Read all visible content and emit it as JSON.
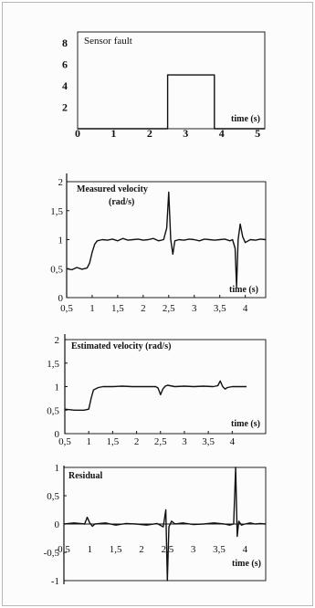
{
  "chart_data": [
    {
      "type": "line",
      "annotation": "Sensor fault",
      "xlabel": "time (s)",
      "ylabel": "",
      "x_ticks": [
        "0",
        "1",
        "2",
        "3",
        "4",
        "5"
      ],
      "y_ticks": [
        "2",
        "4",
        "6",
        "8"
      ],
      "xlim": [
        0,
        5.2
      ],
      "ylim": [
        0,
        9
      ],
      "series": [
        {
          "x": [
            0,
            2.5,
            2.5,
            3.8,
            3.8,
            5.2
          ],
          "y": [
            0,
            0,
            5,
            5,
            0,
            0
          ]
        }
      ]
    },
    {
      "type": "line",
      "annotation_lines": [
        "Measured   velocity",
        "(rad/s)"
      ],
      "xlabel": "time (s)",
      "x_ticks": [
        "0,5",
        "1",
        "1,5",
        "2",
        "2,5",
        "3",
        "3,5",
        "4"
      ],
      "y_ticks": [
        "0",
        "0,5",
        "1",
        "1,5",
        "2"
      ],
      "xlim": [
        0.5,
        4.4
      ],
      "ylim": [
        0,
        2
      ],
      "series": [
        {
          "x": [
            0.5,
            0.6,
            0.7,
            0.8,
            0.9,
            0.95,
            1.0,
            1.05,
            1.1,
            1.2,
            1.3,
            1.4,
            1.5,
            1.6,
            1.7,
            1.8,
            1.9,
            2.0,
            2.1,
            2.2,
            2.3,
            2.4,
            2.46,
            2.5,
            2.54,
            2.58,
            2.62,
            2.7,
            2.8,
            2.9,
            3.0,
            3.1,
            3.2,
            3.3,
            3.4,
            3.5,
            3.6,
            3.7,
            3.75,
            3.8,
            3.83,
            3.86,
            3.9,
            3.95,
            4.0,
            4.1,
            4.2,
            4.3,
            4.4
          ],
          "y": [
            0.5,
            0.48,
            0.52,
            0.49,
            0.51,
            0.6,
            0.78,
            0.92,
            0.98,
            1.0,
            0.99,
            1.01,
            0.98,
            1.02,
            0.99,
            1.0,
            1.01,
            0.99,
            1.0,
            1.02,
            0.98,
            1.0,
            1.2,
            1.82,
            1.0,
            0.75,
            0.98,
            1.0,
            0.99,
            1.01,
            1.0,
            0.98,
            1.01,
            1.0,
            0.99,
            1.0,
            1.01,
            0.98,
            1.0,
            0.85,
            0.18,
            1.0,
            1.27,
            1.05,
            0.95,
            1.0,
            0.99,
            1.01,
            1.0
          ]
        }
      ]
    },
    {
      "type": "line",
      "annotation": "Estimated velocity (rad/s)",
      "xlabel": "time (s)",
      "x_ticks": [
        "0,5",
        "1",
        "1,5",
        "2",
        "2,5",
        "3",
        "3,5",
        "4"
      ],
      "y_ticks": [
        "0",
        "0,5",
        "1",
        "1,5",
        "2"
      ],
      "xlim": [
        0.5,
        4.7
      ],
      "ylim": [
        0,
        2
      ],
      "series": [
        {
          "x": [
            0.5,
            0.7,
            0.9,
            1.0,
            1.05,
            1.1,
            1.2,
            1.3,
            1.5,
            1.7,
            1.9,
            2.1,
            2.3,
            2.4,
            2.45,
            2.5,
            2.55,
            2.6,
            2.65,
            2.8,
            3.0,
            3.2,
            3.4,
            3.6,
            3.7,
            3.75,
            3.8,
            3.85,
            3.9,
            4.0,
            4.2,
            4.3
          ],
          "y": [
            0.52,
            0.5,
            0.5,
            0.52,
            0.75,
            0.93,
            0.98,
            1.0,
            1.0,
            1.01,
            1.0,
            1.0,
            1.0,
            1.0,
            0.97,
            0.83,
            0.95,
            1.01,
            1.03,
            1.0,
            1.01,
            1.0,
            1.01,
            1.0,
            1.02,
            1.12,
            1.0,
            0.95,
            0.98,
            1.0,
            1.0,
            1.0
          ]
        }
      ]
    },
    {
      "type": "line",
      "annotation": "Residual",
      "xlabel": "time (s)",
      "x_ticks": [
        "0,5",
        "1",
        "1,5",
        "2",
        "2,5",
        "3",
        "3,5",
        "4"
      ],
      "y_ticks": [
        "-1",
        "-0,5",
        "0",
        "0,5",
        "1"
      ],
      "xlim": [
        0.5,
        4.4
      ],
      "ylim": [
        -1,
        1
      ],
      "series": [
        {
          "x": [
            0.5,
            0.7,
            0.9,
            0.95,
            1.0,
            1.05,
            1.1,
            1.3,
            1.5,
            1.7,
            1.9,
            2.1,
            2.3,
            2.42,
            2.47,
            2.5,
            2.53,
            2.58,
            2.65,
            2.8,
            3.0,
            3.2,
            3.4,
            3.6,
            3.7,
            3.78,
            3.82,
            3.85,
            3.88,
            3.93,
            4.0,
            4.1,
            4.2,
            4.3,
            4.4
          ],
          "y": [
            0.0,
            0.02,
            0.0,
            0.12,
            0.02,
            -0.04,
            0.0,
            0.02,
            -0.02,
            0.01,
            0.0,
            -0.02,
            0.01,
            -0.05,
            0.25,
            -1.0,
            -0.05,
            0.05,
            0.0,
            0.02,
            -0.01,
            0.0,
            0.02,
            0.0,
            -0.02,
            0.0,
            1.0,
            -0.22,
            0.05,
            -0.02,
            0.0,
            0.02,
            0.0,
            0.01,
            0.0
          ]
        }
      ]
    }
  ]
}
